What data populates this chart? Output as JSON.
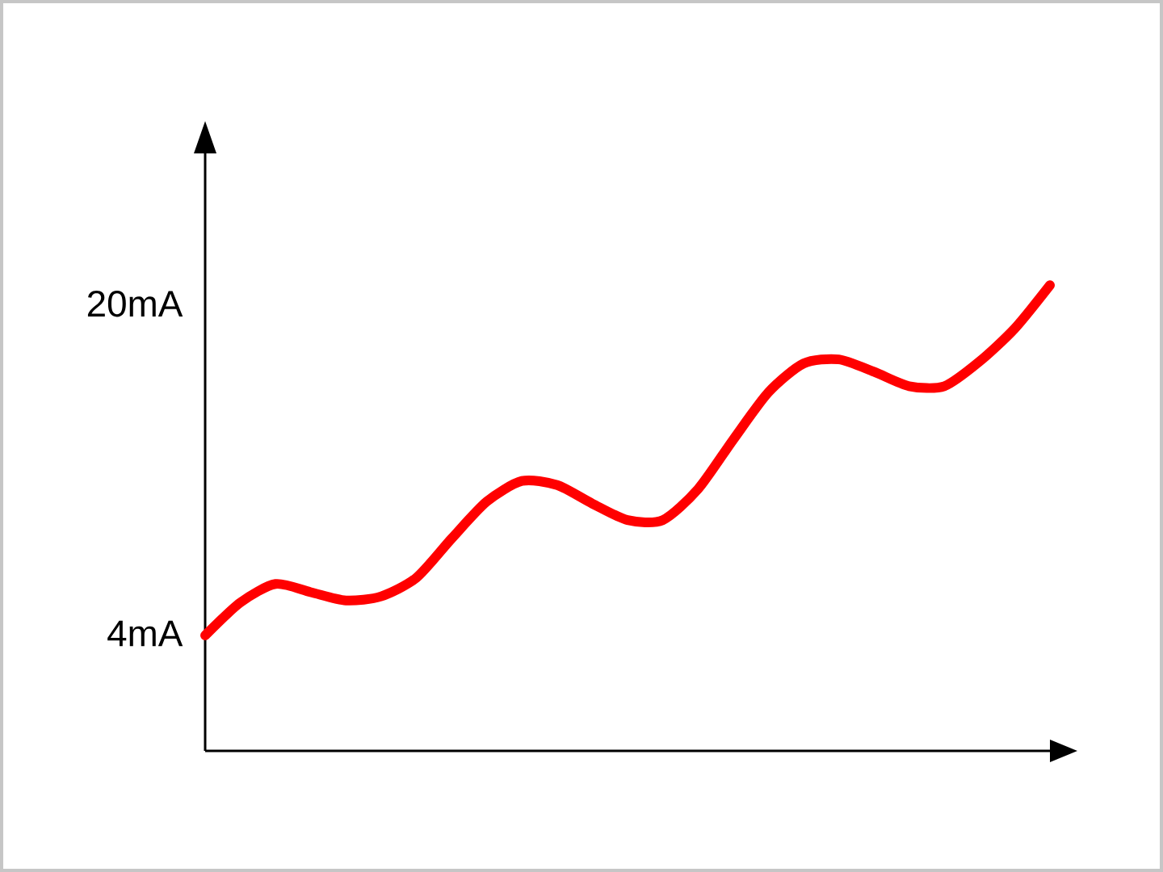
{
  "chart_data": {
    "type": "line",
    "categories": [
      null,
      null,
      null,
      null,
      null,
      null,
      null,
      null,
      null,
      null,
      null,
      null,
      null,
      null,
      null,
      null,
      null,
      null,
      null,
      null,
      null,
      null,
      null,
      null,
      null
    ],
    "series": [
      {
        "color": "#ff0000",
        "values": [
          3.9,
          5.5,
          6.4,
          6.0,
          5.6,
          5.8,
          6.7,
          8.6,
          10.4,
          11.4,
          11.2,
          10.3,
          9.5,
          9.5,
          11.0,
          13.4,
          15.7,
          17.1,
          17.3,
          16.7,
          16.0,
          16.0,
          17.2,
          18.8,
          20.9
        ]
      }
    ],
    "ylim": [
      -1.7,
      27.3
    ],
    "yticks": [
      {
        "value": 4,
        "label": "4mA"
      },
      {
        "value": 20,
        "label": "20mA"
      }
    ],
    "tick_labels": "y",
    "marker": "none",
    "line_style": "solid"
  }
}
